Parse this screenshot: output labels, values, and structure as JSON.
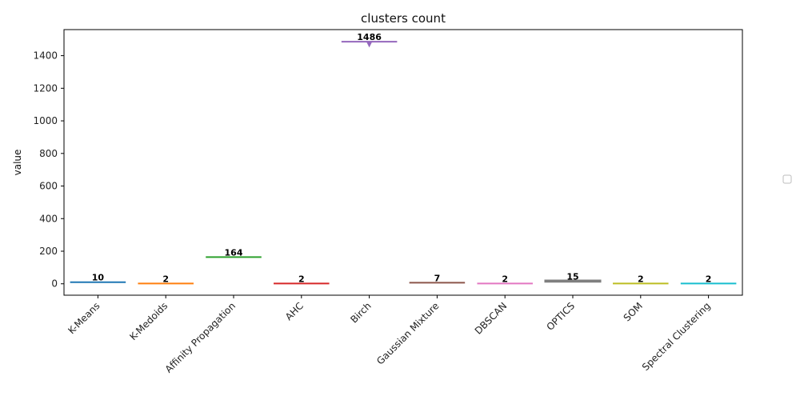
{
  "chart_data": {
    "type": "box",
    "title": "clusters count",
    "xlabel": "",
    "ylabel": "value",
    "ylim": [
      -70,
      1560
    ],
    "yticks": [
      0,
      200,
      400,
      600,
      800,
      1000,
      1200,
      1400
    ],
    "grid": false,
    "legend": "right, empty",
    "categories": [
      "K-Means",
      "K-Medoids",
      "Affinity Propagation",
      "AHC",
      "Birch",
      "Gaussian Mixture",
      "DBSCAN",
      "OPTICS",
      "SOM",
      "Spectral Clustering"
    ],
    "values": [
      10,
      2,
      164,
      2,
      1486,
      7,
      2,
      15,
      2,
      2
    ],
    "data_labels": [
      "10",
      "2",
      "164",
      "2",
      "1486",
      "7",
      "2",
      "15",
      "2",
      "2"
    ],
    "colors": [
      "#1f77b4",
      "#ff7f0e",
      "#2ca02c",
      "#d62728",
      "#9467bd",
      "#8c564b",
      "#e377c2",
      "#7f7f7f",
      "#bcbd22",
      "#17becf"
    ],
    "ranges": [
      {
        "low": 10,
        "high": 10
      },
      {
        "low": 2,
        "high": 2
      },
      {
        "low": 162,
        "high": 168
      },
      {
        "low": 2,
        "high": 2
      },
      {
        "low": 1486,
        "high": 1486,
        "outlier": 1470
      },
      {
        "low": 7,
        "high": 7
      },
      {
        "low": 2,
        "high": 2
      },
      {
        "low": 11,
        "high": 22
      },
      {
        "low": 2,
        "high": 2
      },
      {
        "low": 2,
        "high": 2
      }
    ]
  }
}
